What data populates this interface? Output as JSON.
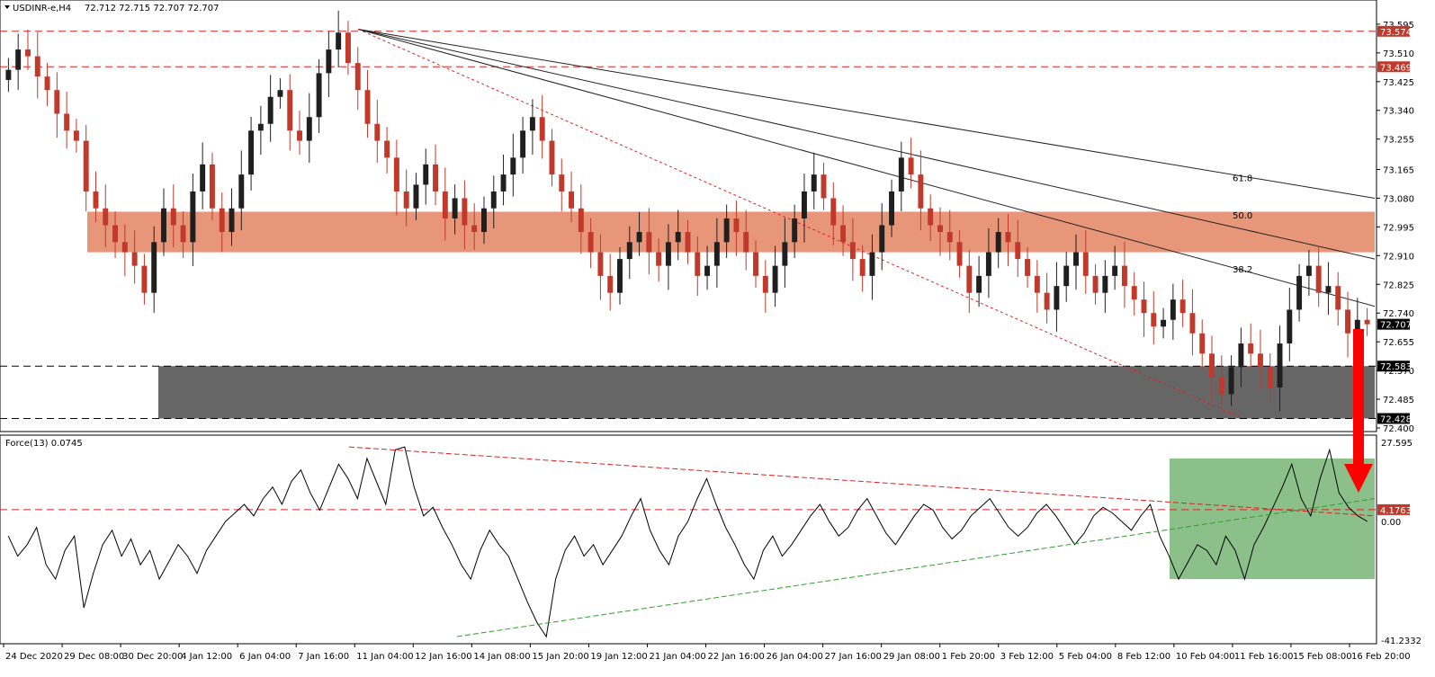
{
  "header": {
    "symbol": "USDINR-e,H4",
    "ohlc": "72.712 72.715 72.707 72.707"
  },
  "indicator_header": "Force(13) 0.0745",
  "colors": {
    "bull": "#1f1f1f",
    "bear": "#c0392b",
    "resistance_zone": "#e8967a",
    "support_zone": "#666666",
    "force_zone": "#8cc08a",
    "red_line": "#e02020",
    "green_line": "#2f9e2f",
    "arrow": "#ff0000",
    "tag_dark": "#000000",
    "tag_red": "#c0392b"
  },
  "chart_data": [
    {
      "type": "candlestick",
      "ylim": [
        72.4,
        73.64
      ],
      "y_ticks": [
        "73.595",
        "73.510",
        "73.425",
        "73.340",
        "73.255",
        "73.165",
        "73.080",
        "72.995",
        "72.910",
        "72.825",
        "72.740",
        "72.655",
        "72.570",
        "72.485",
        "72.400"
      ],
      "x_ticks": [
        "24 Dec 2020",
        "29 Dec 08:00",
        "30 Dec 20:00",
        "4 Jan 12:00",
        "6 Jan 04:00",
        "7 Jan 16:00",
        "11 Jan 04:00",
        "12 Jan 16:00",
        "14 Jan 08:00",
        "15 Jan 20:00",
        "19 Jan 12:00",
        "21 Jan 04:00",
        "22 Jan 16:00",
        "26 Jan 04:00",
        "27 Jan 16:00",
        "29 Jan 08:00",
        "1 Feb 20:00",
        "3 Feb 12:00",
        "5 Feb 04:00",
        "8 Feb 12:00",
        "10 Feb 04:00",
        "11 Feb 16:00",
        "15 Feb 08:00",
        "16 Feb 20:00"
      ],
      "horizontal_levels": [
        {
          "value": 73.574,
          "label": "73.574",
          "style": "red-dashed"
        },
        {
          "value": 73.469,
          "label": "73.469",
          "style": "red-dashed"
        },
        {
          "value": 72.583,
          "label": "72.583",
          "style": "black-dashed"
        },
        {
          "value": 72.428,
          "label": "72.428",
          "style": "black-dashed"
        }
      ],
      "price_tag": {
        "value": 72.707,
        "label": "72.707"
      },
      "zones": [
        {
          "name": "resistance",
          "from": 72.92,
          "to": 73.04
        },
        {
          "name": "support",
          "from": 72.428,
          "to": 72.583
        }
      ],
      "fib_labels": [
        {
          "label": "61.8",
          "value": 73.12
        },
        {
          "label": "50.0",
          "value": 73.01
        },
        {
          "label": "38.2",
          "value": 72.85
        }
      ],
      "closes": [
        73.46,
        73.52,
        73.5,
        73.44,
        73.4,
        73.33,
        73.28,
        73.25,
        73.1,
        73.05,
        73.0,
        72.95,
        72.92,
        72.88,
        72.8,
        72.95,
        73.05,
        73.0,
        72.95,
        73.1,
        73.18,
        73.05,
        72.98,
        73.05,
        73.15,
        73.28,
        73.3,
        73.38,
        73.4,
        73.28,
        73.25,
        73.32,
        73.45,
        73.52,
        73.57,
        73.48,
        73.4,
        73.3,
        73.25,
        73.2,
        73.1,
        73.05,
        73.12,
        73.18,
        73.1,
        73.02,
        73.08,
        73.0,
        72.98,
        73.05,
        73.1,
        73.15,
        73.2,
        73.28,
        73.32,
        73.25,
        73.15,
        73.1,
        73.05,
        72.98,
        72.92,
        72.85,
        72.8,
        72.9,
        72.95,
        72.98,
        72.92,
        72.88,
        72.95,
        72.98,
        72.92,
        72.85,
        72.88,
        72.95,
        73.02,
        72.98,
        72.92,
        72.85,
        72.8,
        72.88,
        72.95,
        73.02,
        73.1,
        73.15,
        73.08,
        73.0,
        72.95,
        72.9,
        72.85,
        72.92,
        73.0,
        73.1,
        73.2,
        73.15,
        73.05,
        73.0,
        72.98,
        72.95,
        72.88,
        72.8,
        72.85,
        72.92,
        72.98,
        72.95,
        72.9,
        72.85,
        72.8,
        72.75,
        72.82,
        72.88,
        72.92,
        72.85,
        72.8,
        72.85,
        72.88,
        72.82,
        72.78,
        72.74,
        72.7,
        72.72,
        72.78,
        72.74,
        72.68,
        72.62,
        72.55,
        72.5,
        72.58,
        72.65,
        72.62,
        72.58,
        72.52,
        72.65,
        72.75,
        72.85,
        72.88,
        72.8,
        72.82,
        72.75,
        72.68,
        72.72,
        72.707
      ],
      "force_panel": {
        "ylim": [
          -41.2332,
          27.595
        ],
        "y_ticks": [
          "27.595",
          "0.00",
          "-41.2332"
        ],
        "level_tag": {
          "value": 4.1763,
          "label": "4.1763"
        },
        "values": [
          -5,
          -12,
          -8,
          -2,
          -15,
          -20,
          -10,
          -5,
          -30,
          -18,
          -8,
          -3,
          -12,
          -6,
          -15,
          -10,
          -20,
          -14,
          -8,
          -12,
          -18,
          -10,
          -5,
          0,
          3,
          6,
          2,
          8,
          12,
          6,
          14,
          18,
          10,
          4,
          12,
          20,
          15,
          8,
          22,
          14,
          6,
          25,
          26,
          12,
          2,
          5,
          -2,
          -8,
          -15,
          -20,
          -10,
          -3,
          -8,
          -12,
          -20,
          -28,
          -35,
          -40,
          -20,
          -10,
          -5,
          -12,
          -8,
          -15,
          -10,
          -5,
          2,
          8,
          -3,
          -10,
          -15,
          -5,
          0,
          8,
          15,
          6,
          -2,
          -8,
          -15,
          -20,
          -10,
          -5,
          -12,
          -8,
          -3,
          2,
          6,
          0,
          -5,
          -2,
          4,
          8,
          2,
          -4,
          -8,
          -3,
          2,
          6,
          4,
          -2,
          -6,
          -3,
          2,
          5,
          8,
          3,
          -2,
          -5,
          -2,
          3,
          6,
          2,
          -3,
          -8,
          -4,
          2,
          5,
          3,
          0,
          -3,
          2,
          6,
          -5,
          -12,
          -20,
          -14,
          -8,
          -10,
          -15,
          -5,
          -10,
          -20,
          -8,
          -2,
          5,
          12,
          20,
          8,
          2,
          15,
          25,
          10,
          5,
          2,
          0.0745
        ]
      }
    }
  ]
}
